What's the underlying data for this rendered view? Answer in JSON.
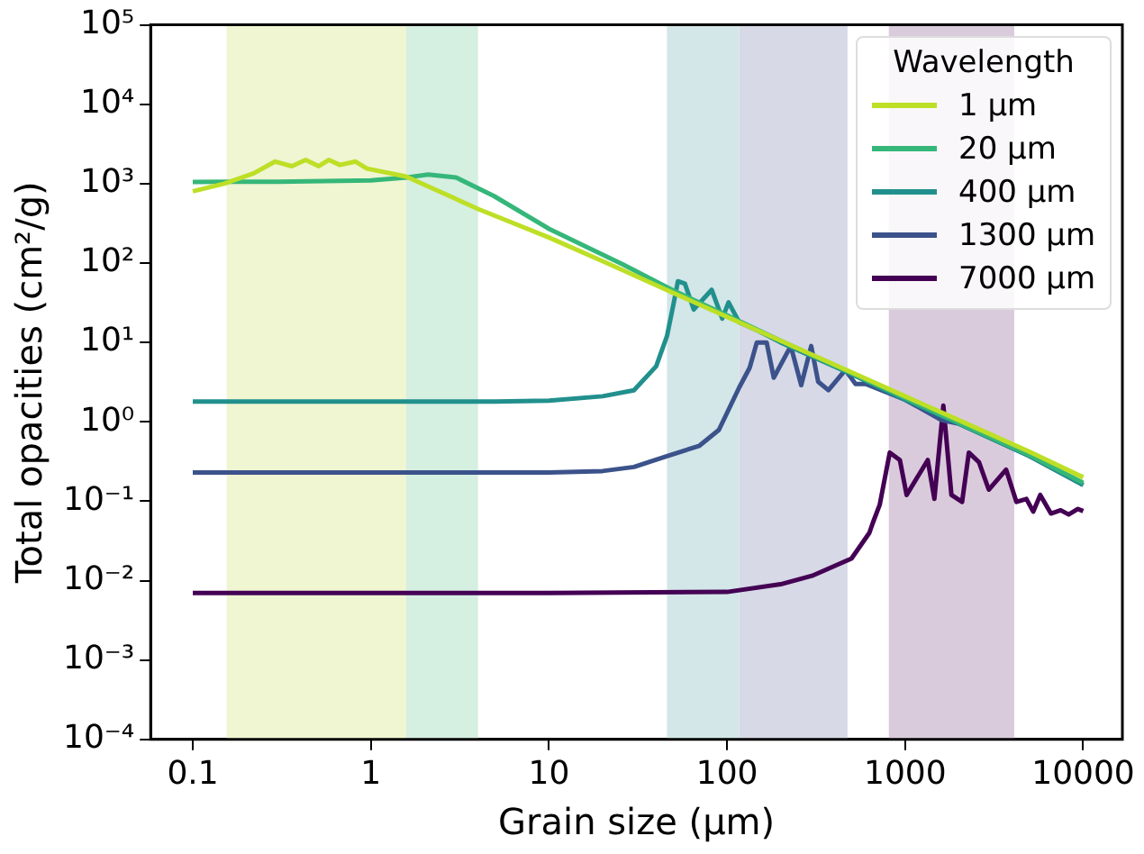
{
  "chart_data": {
    "type": "line",
    "xlabel": "Grain size (μm)",
    "ylabel": "Total opacities (cm²/g)",
    "legend_title": "Wavelength",
    "legend": "top right",
    "grid": false,
    "log": "xy",
    "marker": "none",
    "line_style": "solid",
    "xlim": [
      0.058,
      16600
    ],
    "xticks": [
      0.1,
      1,
      10,
      100,
      1000,
      10000
    ],
    "ylim": [
      0.0001,
      100000
    ],
    "yticks": [
      {
        "value": 0.0001,
        "label": "10⁻⁴"
      },
      {
        "value": 0.001,
        "label": "10⁻³"
      },
      {
        "value": 0.01,
        "label": "10⁻²"
      },
      {
        "value": 0.1,
        "label": "10⁻¹"
      },
      {
        "value": 1,
        "label": "10⁰"
      },
      {
        "value": 10,
        "label": "10¹"
      },
      {
        "value": 100,
        "label": "10²"
      },
      {
        "value": 1000,
        "label": "10³"
      },
      {
        "value": 10000,
        "label": "10⁴"
      },
      {
        "value": 100000,
        "label": "10⁵"
      }
    ],
    "bands": [
      {
        "axis": "x",
        "from": 0.155,
        "to": 1.58,
        "color": "#f0f5d2"
      },
      {
        "axis": "x",
        "from": 1.58,
        "to": 4,
        "color": "#d5efe1"
      },
      {
        "axis": "x",
        "from": 46,
        "to": 117,
        "color": "#d3e6e8"
      },
      {
        "axis": "x",
        "from": 117,
        "to": 475,
        "color": "#d7d9e6"
      },
      {
        "axis": "x",
        "from": 810,
        "to": 4100,
        "color": "#dacbdc"
      }
    ],
    "series": [
      {
        "name": "1 μm",
        "color": "#bddf26",
        "x": [
          0.1,
          0.15,
          0.22,
          0.29,
          0.36,
          0.43,
          0.51,
          0.58,
          0.67,
          0.82,
          0.95,
          1.58,
          4,
          10,
          22,
          50,
          100,
          200,
          500,
          1000,
          2000,
          5000,
          10000
        ],
        "values": [
          800,
          1000,
          1350,
          1900,
          1660,
          1990,
          1660,
          1990,
          1720,
          1900,
          1550,
          1230,
          480,
          210,
          96,
          42,
          21,
          10.5,
          4.2,
          2.1,
          1.05,
          0.42,
          0.2
        ]
      },
      {
        "name": "20 μm",
        "color": "#35b779",
        "x": [
          0.1,
          0.3,
          1,
          1.6,
          2.1,
          3,
          4.9,
          10,
          26,
          50,
          100,
          200,
          500,
          1000,
          2000,
          5000,
          10000
        ],
        "values": [
          1050,
          1060,
          1100,
          1200,
          1300,
          1200,
          700,
          270,
          96,
          45,
          22,
          10.5,
          4.1,
          2,
          0.97,
          0.38,
          0.17
        ]
      },
      {
        "name": "400 μm",
        "color": "#21908d",
        "x": [
          0.1,
          1,
          5,
          10,
          20,
          30,
          40,
          46,
          50,
          53,
          58,
          65,
          82,
          94,
          102,
          117,
          150,
          200,
          500,
          1000,
          2000,
          5000,
          10000
        ],
        "values": [
          1.8,
          1.8,
          1.8,
          1.85,
          2.1,
          2.5,
          5,
          12,
          30,
          59,
          55,
          26,
          46,
          20,
          32,
          18,
          14,
          10,
          4,
          1.9,
          0.95,
          0.37,
          0.16
        ]
      },
      {
        "name": "1300 μm",
        "color": "#3b528b",
        "x": [
          0.1,
          1,
          10,
          20,
          30,
          46,
          70,
          90,
          117,
          134,
          147,
          167,
          183,
          228,
          261,
          297,
          325,
          371,
          462,
          527,
          600,
          1000,
          1600,
          2000,
          5000,
          10000
        ],
        "values": [
          0.23,
          0.23,
          0.23,
          0.24,
          0.27,
          0.37,
          0.5,
          0.79,
          2.7,
          4.8,
          10,
          10,
          3.6,
          9,
          2.9,
          9,
          3.2,
          2.5,
          4.5,
          3,
          3,
          1.9,
          1.05,
          0.95,
          0.37,
          0.16
        ]
      },
      {
        "name": "7000 μm",
        "color": "#440154",
        "x": [
          0.1,
          1,
          10,
          100,
          200,
          300,
          500,
          630,
          660,
          720,
          820,
          935,
          1020,
          1340,
          1460,
          1640,
          1820,
          2090,
          2280,
          2600,
          2950,
          3690,
          4220,
          4800,
          5240,
          5740,
          6590,
          7470,
          8290,
          9350,
          10000
        ],
        "values": [
          0.007,
          0.007,
          0.007,
          0.0072,
          0.009,
          0.0115,
          0.019,
          0.04,
          0.054,
          0.09,
          0.41,
          0.33,
          0.12,
          0.33,
          0.107,
          1.6,
          0.12,
          0.098,
          0.41,
          0.31,
          0.14,
          0.25,
          0.098,
          0.107,
          0.074,
          0.12,
          0.07,
          0.077,
          0.068,
          0.08,
          0.075
        ]
      }
    ]
  }
}
